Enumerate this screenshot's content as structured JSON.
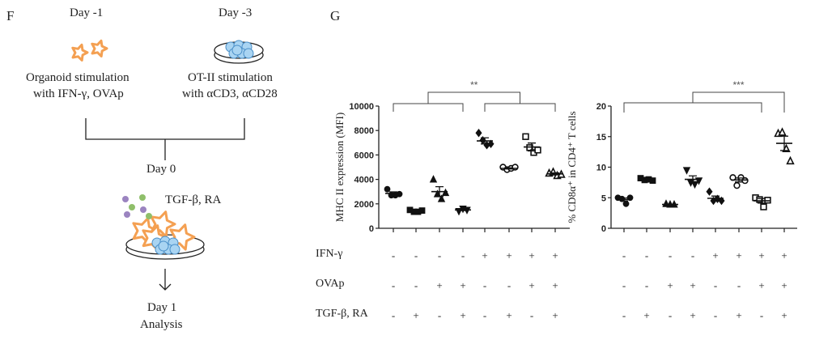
{
  "panel_f": {
    "label": "F",
    "day_left": "Day -1",
    "day_right": "Day -3",
    "left_text_1": "Organoid stimulation",
    "left_text_2": "with IFN-γ, OVAp",
    "right_text_1": "OT-II stimulation",
    "right_text_2": "with αCD3, αCD28",
    "day0": "Day 0",
    "treatment": "TGF-β, RA",
    "day1": "Day 1",
    "analysis": "Analysis",
    "colors": {
      "organoid": "#f4a052",
      "tcell": "#a9d4f2",
      "dot_purple": "#9b84c0",
      "dot_green": "#8fbf6a"
    }
  },
  "panel_g": {
    "label": "G"
  },
  "conditions": {
    "rows": [
      {
        "label": "IFN-γ",
        "values": [
          "-",
          "-",
          "-",
          "-",
          "+",
          "+",
          "+",
          "+"
        ]
      },
      {
        "label": "OVAp",
        "values": [
          "-",
          "-",
          "+",
          "+",
          "-",
          "-",
          "+",
          "+"
        ]
      },
      {
        "label": "TGF-β, RA",
        "values": [
          "-",
          "+",
          "-",
          "+",
          "-",
          "+",
          "-",
          "+"
        ]
      }
    ]
  },
  "chart_data": [
    {
      "type": "scatter",
      "ylabel": "MHC II expression (MFI)",
      "ylim": [
        0,
        10000
      ],
      "yticks": [
        "0",
        "2000",
        "4000",
        "6000",
        "8000",
        "10000"
      ],
      "significance": "**",
      "markers": [
        "circle",
        "square",
        "triangle",
        "inv-triangle",
        "diamond",
        "open-circle",
        "open-square",
        "open-triangle"
      ],
      "groups": [
        {
          "points": [
            3200,
            2700,
            2700,
            2800
          ],
          "mean": 2850
        },
        {
          "points": [
            1500,
            1350,
            1350,
            1450
          ],
          "mean": 1400
        },
        {
          "points": [
            4000,
            2800,
            2400,
            2900
          ],
          "mean": 3000
        },
        {
          "points": [
            1400,
            1600,
            1500
          ],
          "mean": 1500
        },
        {
          "points": [
            7800,
            7200,
            6800,
            6900
          ],
          "mean": 7150
        },
        {
          "points": [
            5000,
            4800,
            4900,
            5000
          ],
          "mean": 4900
        },
        {
          "points": [
            7500,
            6600,
            6200,
            6400
          ],
          "mean": 6650
        },
        {
          "points": [
            4500,
            4600,
            4300,
            4400
          ],
          "mean": 4450
        }
      ]
    },
    {
      "type": "scatter",
      "ylabel": "% CD8α⁺ in CD4⁺ T cells",
      "ylim": [
        0,
        20
      ],
      "yticks": [
        "0",
        "5",
        "10",
        "15",
        "20"
      ],
      "significance": "***",
      "markers": [
        "circle",
        "square",
        "triangle",
        "inv-triangle",
        "diamond",
        "open-circle",
        "open-square",
        "open-triangle"
      ],
      "groups": [
        {
          "points": [
            5,
            4.8,
            4,
            5
          ],
          "mean": 4.7
        },
        {
          "points": [
            8.2,
            7.9,
            8,
            7.8
          ],
          "mean": 8
        },
        {
          "points": [
            4,
            3.9,
            3.9
          ],
          "mean": 3.9
        },
        {
          "points": [
            9.5,
            7.5,
            7.2,
            7.8
          ],
          "mean": 8
        },
        {
          "points": [
            6,
            4.5,
            4.8,
            4.5
          ],
          "mean": 4.9
        },
        {
          "points": [
            8.3,
            7,
            8.3,
            7.8
          ],
          "mean": 7.9
        },
        {
          "points": [
            5,
            4.7,
            3.5,
            4.6
          ],
          "mean": 4.5
        },
        {
          "points": [
            15.5,
            15.7,
            13,
            11
          ],
          "mean": 13.9
        }
      ]
    }
  ]
}
